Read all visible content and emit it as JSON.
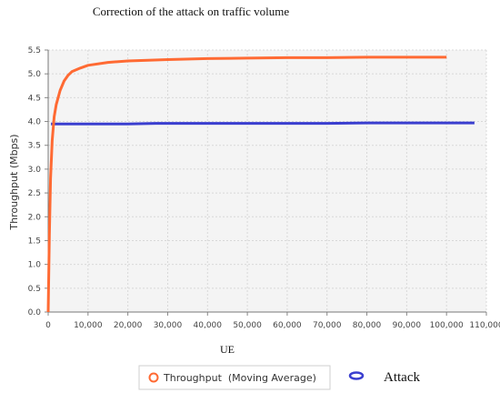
{
  "chart_data": {
    "type": "line",
    "title": "Correction of the attack on traffic volume",
    "xlabel": "UE",
    "ylabel": "Throughput (Mbps)",
    "xlim": [
      0,
      110000
    ],
    "ylim": [
      0,
      5.5
    ],
    "x_ticks": [
      "0",
      "10,000",
      "20,000",
      "30,000",
      "40,000",
      "50,000",
      "60,000",
      "70,000",
      "80,000",
      "90,000",
      "100,000",
      "110,000"
    ],
    "y_ticks": [
      "0.0",
      "0.5",
      "1.0",
      "1.5",
      "2.0",
      "2.5",
      "3.0",
      "3.5",
      "4.0",
      "4.5",
      "5.0",
      "5.5"
    ],
    "grid": true,
    "legend_position": "bottom",
    "series": [
      {
        "name": "Throughput  (Moving Average)",
        "color": "#ff6a33",
        "marker": "hollow-circle",
        "x": [
          0,
          300,
          600,
          1000,
          1500,
          2000,
          3000,
          4000,
          5000,
          6000,
          8000,
          10000,
          15000,
          20000,
          30000,
          40000,
          50000,
          60000,
          70000,
          80000,
          90000,
          100000
        ],
        "y": [
          0.0,
          1.6,
          2.8,
          3.6,
          4.1,
          4.35,
          4.65,
          4.85,
          4.97,
          5.05,
          5.12,
          5.18,
          5.24,
          5.27,
          5.3,
          5.32,
          5.33,
          5.34,
          5.34,
          5.35,
          5.35,
          5.35
        ]
      },
      {
        "name": "Attack",
        "color": "#3a3ecf",
        "marker": "hollow-ellipse",
        "x": [
          700,
          10000,
          20000,
          27000,
          30000,
          40000,
          50000,
          60000,
          70000,
          80000,
          90000,
          100000,
          107000
        ],
        "y": [
          3.95,
          3.95,
          3.95,
          3.96,
          3.96,
          3.96,
          3.96,
          3.96,
          3.96,
          3.97,
          3.97,
          3.97,
          3.97
        ]
      }
    ]
  }
}
